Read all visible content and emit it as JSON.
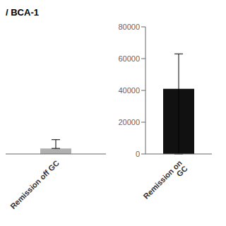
{
  "chart_data": [
    {
      "type": "bar",
      "title": "/ BCA-1",
      "categories": [
        "Remission off GC"
      ],
      "values": [
        3500
      ],
      "error_lower": [
        0
      ],
      "error_upper": [
        5500
      ],
      "color": "#b0b0b0",
      "ylim": [
        0,
        80000
      ],
      "tick_labels": "x"
    },
    {
      "type": "bar",
      "categories": [
        "Remission on GC"
      ],
      "values": [
        41000
      ],
      "error_lower": [
        41000
      ],
      "error_upper": [
        22000
      ],
      "color": "#111111",
      "ylim": [
        0,
        80000
      ],
      "yticks": [
        0,
        20000,
        40000,
        60000,
        80000
      ]
    }
  ]
}
